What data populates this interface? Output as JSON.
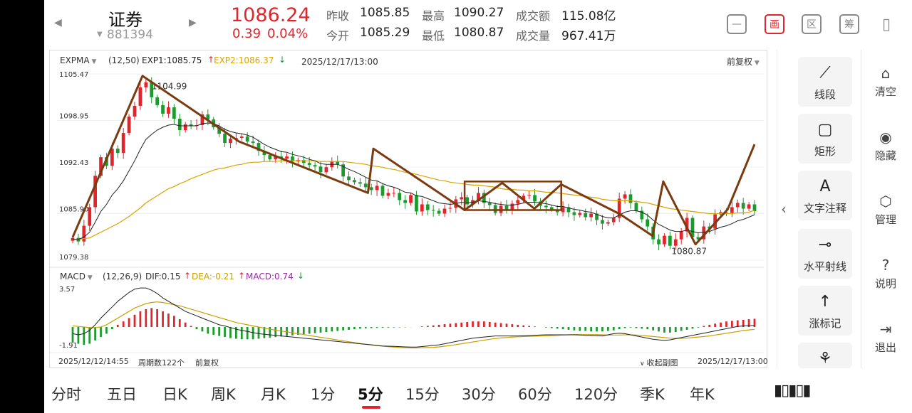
{
  "header": {
    "name": "证券",
    "code": "881394",
    "price": "1086.24",
    "change": "0.39",
    "change_pct": "0.04%",
    "stats": [
      {
        "label": "昨收",
        "value": "1085.85",
        "tone": "flat"
      },
      {
        "label": "最高",
        "value": "1090.27",
        "tone": "up"
      },
      {
        "label": "成交额",
        "value": "115.08亿",
        "tone": "flat"
      },
      {
        "label": "今开",
        "value": "1085.29",
        "tone": "dn"
      },
      {
        "label": "最低",
        "value": "1080.87",
        "tone": "dn"
      },
      {
        "label": "成交量",
        "value": "967.41万",
        "tone": "flat"
      }
    ],
    "toolbar": [
      "minus-box-icon",
      "draw-icon",
      "zone-icon",
      "chip-icon",
      "phone-rotate-icon"
    ],
    "toolbar_glyphs": [
      "—",
      "画",
      "区",
      "筹",
      "▯"
    ]
  },
  "indicator": {
    "name": "EXPMA",
    "params": "(12,50)",
    "exp1": "EXP1:1085.75",
    "exp2": "EXP2:1086.37",
    "time": "2025/12/17/13:00",
    "adjust": "前复权"
  },
  "macd_header": {
    "name": "MACD",
    "params": "(12,26,9)",
    "dif": "DIF:0.15",
    "dea": "DEA:-0.21",
    "macd": "MACD:0.74"
  },
  "footer": {
    "start": "2025/12/12/14:55",
    "periods": "周期数122个",
    "adjust": "前复权",
    "collapse": "收起副图",
    "end": "2025/12/17/13:00"
  },
  "tools": [
    {
      "label": "线段",
      "icon": "segment-icon"
    },
    {
      "label": "矩形",
      "icon": "rectangle-icon"
    },
    {
      "label": "文字注释",
      "icon": "text-annotation-icon"
    },
    {
      "label": "水平射线",
      "icon": "horizontal-ray-icon"
    },
    {
      "label": "涨标记",
      "icon": "rise-mark-icon"
    },
    {
      "label": "",
      "icon": "pattern-icon"
    }
  ],
  "side": [
    {
      "label": "清空",
      "icon": "clear-icon"
    },
    {
      "label": "隐藏",
      "icon": "eye-icon"
    },
    {
      "label": "管理",
      "icon": "manage-icon"
    },
    {
      "label": "说明",
      "icon": "help-icon"
    },
    {
      "label": "退出",
      "icon": "exit-icon"
    }
  ],
  "timeframes": [
    "分时",
    "五日",
    "日K",
    "周K",
    "月K",
    "1分",
    "5分",
    "15分",
    "30分",
    "60分",
    "120分",
    "季K",
    "年K"
  ],
  "active_timeframe": "5分",
  "colors": {
    "up": "#e0252d",
    "down": "#1d9a2f",
    "exp1": "#222222",
    "exp2": "#d9a400",
    "macd_dea": "#c9a000",
    "annotation": "#7a3b10"
  },
  "chart_data": [
    {
      "type": "candlestick",
      "title": "EXPMA",
      "ylim": [
        1079.38,
        1105.47
      ],
      "y_ticks": [
        "1105.47",
        "1098.95",
        "1092.43",
        "1085.90",
        "1079.38"
      ],
      "y_tick_values": [
        1105.47,
        1098.95,
        1092.43,
        1085.9,
        1079.38
      ],
      "x_start": "2025/12/12/14:55",
      "x_end": "2025/12/17/13:00",
      "periods": 122,
      "max_label": "1104.99",
      "min_label": "1080.87",
      "closes": [
        1082.5,
        1082.0,
        1084.2,
        1086.8,
        1091.2,
        1093.8,
        1092.6,
        1095.0,
        1094.4,
        1097.2,
        1099.5,
        1101.0,
        1103.6,
        1104.3,
        1102.2,
        1101.1,
        1099.9,
        1100.8,
        1099.2,
        1097.6,
        1098.4,
        1098.2,
        1098.3,
        1099.8,
        1099.1,
        1098.0,
        1097.1,
        1095.8,
        1096.4,
        1096.5,
        1096.7,
        1096.0,
        1095.8,
        1094.7,
        1094.1,
        1093.5,
        1093.9,
        1093.6,
        1093.9,
        1093.2,
        1093.4,
        1093.0,
        1092.7,
        1092.5,
        1091.7,
        1092.4,
        1093.2,
        1092.8,
        1091.1,
        1090.6,
        1090.3,
        1090.1,
        1089.6,
        1089.2,
        1089.8,
        1088.4,
        1088.8,
        1088.8,
        1087.8,
        1087.4,
        1088.5,
        1086.2,
        1087.2,
        1086.4,
        1086.3,
        1085.9,
        1086.6,
        1086.7,
        1087.9,
        1088.2,
        1087.2,
        1087.8,
        1088.8,
        1087.4,
        1087.1,
        1086.0,
        1087.0,
        1086.5,
        1087.3,
        1087.8,
        1088.4,
        1088.5,
        1087.6,
        1087.0,
        1086.8,
        1086.5,
        1086.1,
        1086.8,
        1086.1,
        1085.7,
        1086.0,
        1085.4,
        1085.9,
        1085.0,
        1084.5,
        1084.7,
        1085.3,
        1088.0,
        1088.6,
        1087.4,
        1086.3,
        1085.1,
        1084.1,
        1082.3,
        1081.6,
        1082.8,
        1081.4,
        1082.3,
        1083.4,
        1085.3,
        1082.6,
        1082.3,
        1084.1,
        1083.8,
        1085.8,
        1086.1,
        1086.0,
        1086.8,
        1087.4,
        1086.6,
        1087.2,
        1086.24
      ],
      "exp1": [
        1082.3,
        1082.3,
        1082.6,
        1083.3,
        1084.7,
        1086.2,
        1087.2,
        1088.5,
        1089.4,
        1090.5,
        1091.9,
        1093.3,
        1094.9,
        1096.3,
        1097.0,
        1097.6,
        1098.0,
        1098.3,
        1098.4,
        1098.2,
        1098.2,
        1098.2,
        1098.2,
        1098.5,
        1098.6,
        1098.5,
        1098.2,
        1097.7,
        1097.4,
        1097.2,
        1097.1,
        1096.9,
        1096.6,
        1096.1,
        1095.6,
        1095.2,
        1094.9,
        1094.6,
        1094.5,
        1094.2,
        1094.0,
        1093.8,
        1093.5,
        1093.3,
        1092.9,
        1092.8,
        1092.8,
        1092.8,
        1092.5,
        1092.1,
        1091.8,
        1091.4,
        1091.0,
        1090.6,
        1090.5,
        1090.1,
        1089.8,
        1089.6,
        1089.3,
        1088.9,
        1088.8,
        1088.4,
        1088.3,
        1088.0,
        1087.7,
        1087.4,
        1087.3,
        1087.2,
        1087.3,
        1087.5,
        1087.4,
        1087.5,
        1087.7,
        1087.6,
        1087.5,
        1087.3,
        1087.2,
        1087.1,
        1087.1,
        1087.2,
        1087.4,
        1087.5,
        1087.5,
        1087.4,
        1087.3,
        1087.1,
        1086.9,
        1086.9,
        1086.7,
        1086.5,
        1086.4,
        1086.2,
        1086.1,
        1085.8,
        1085.5,
        1085.3,
        1085.3,
        1085.7,
        1086.1,
        1086.3,
        1086.3,
        1086.1,
        1085.7,
        1085.0,
        1084.4,
        1084.0,
        1083.6,
        1083.4,
        1083.4,
        1083.6,
        1083.4,
        1083.2,
        1083.3,
        1083.4,
        1083.7,
        1084.0,
        1084.2,
        1084.5,
        1084.9,
        1085.1,
        1085.4,
        1085.75
      ],
      "exp2": [
        1082.3,
        1082.3,
        1082.4,
        1082.5,
        1082.9,
        1083.3,
        1083.7,
        1084.1,
        1084.5,
        1085.0,
        1085.5,
        1086.1,
        1086.7,
        1087.4,
        1087.9,
        1088.4,
        1088.9,
        1089.4,
        1089.7,
        1090.1,
        1090.4,
        1090.8,
        1091.1,
        1091.4,
        1091.7,
        1092.0,
        1092.2,
        1092.3,
        1092.5,
        1092.7,
        1092.8,
        1093.0,
        1093.1,
        1093.1,
        1093.2,
        1093.2,
        1093.2,
        1093.3,
        1093.3,
        1093.3,
        1093.3,
        1093.3,
        1093.3,
        1093.3,
        1093.2,
        1093.2,
        1093.2,
        1093.2,
        1093.2,
        1093.1,
        1093.0,
        1092.9,
        1092.8,
        1092.6,
        1092.5,
        1092.4,
        1092.2,
        1092.1,
        1091.9,
        1091.7,
        1091.6,
        1091.4,
        1091.2,
        1091.0,
        1090.8,
        1090.6,
        1090.5,
        1090.3,
        1090.2,
        1090.1,
        1090.0,
        1089.9,
        1089.9,
        1089.8,
        1089.7,
        1089.6,
        1089.4,
        1089.3,
        1089.3,
        1089.2,
        1089.2,
        1089.1,
        1089.1,
        1089.0,
        1088.9,
        1088.9,
        1088.8,
        1088.7,
        1088.6,
        1088.5,
        1088.4,
        1088.3,
        1088.2,
        1088.1,
        1087.9,
        1087.8,
        1087.7,
        1087.7,
        1087.7,
        1087.7,
        1087.6,
        1087.5,
        1087.4,
        1087.2,
        1087.0,
        1086.8,
        1086.6,
        1086.5,
        1086.4,
        1086.3,
        1086.2,
        1086.1,
        1086.0,
        1085.9,
        1085.9,
        1085.9,
        1085.9,
        1085.9,
        1086.0,
        1086.0,
        1086.1,
        1086.37
      ]
    },
    {
      "type": "bar",
      "title": "MACD",
      "ylim": [
        -1.91,
        3.57
      ],
      "y_ticks": [
        "3.57",
        "-1.91"
      ],
      "y_tick_values": [
        3.57,
        -1.91
      ],
      "macd": [
        -1.4,
        -1.5,
        -1.6,
        -1.5,
        -1.2,
        -0.9,
        -0.6,
        -0.2,
        0.2,
        0.5,
        0.8,
        1.1,
        1.4,
        1.6,
        1.7,
        1.6,
        1.4,
        1.2,
        1.0,
        0.7,
        0.4,
        0.1,
        -0.2,
        -0.4,
        -0.6,
        -0.7,
        -0.8,
        -0.9,
        -1.0,
        -1.05,
        -1.1,
        -1.1,
        -1.1,
        -1.05,
        -1.0,
        -0.95,
        -0.9,
        -0.85,
        -0.8,
        -0.75,
        -0.7,
        -0.65,
        -0.6,
        -0.55,
        -0.5,
        -0.45,
        -0.4,
        -0.35,
        -0.3,
        -0.25,
        -0.2,
        -0.15,
        -0.12,
        -0.1,
        -0.08,
        -0.06,
        -0.05,
        -0.04,
        -0.03,
        -0.02,
        -0.01,
        0.0,
        0.05,
        0.1,
        0.15,
        0.2,
        0.25,
        0.3,
        0.35,
        0.4,
        0.45,
        0.5,
        0.5,
        0.5,
        0.45,
        0.4,
        0.35,
        0.3,
        0.25,
        0.2,
        0.15,
        0.1,
        0.05,
        0.0,
        -0.05,
        -0.1,
        -0.15,
        -0.2,
        -0.25,
        -0.3,
        -0.35,
        -0.35,
        -0.4,
        -0.4,
        -0.4,
        -0.35,
        -0.3,
        -0.2,
        -0.1,
        -0.05,
        -0.1,
        -0.15,
        -0.2,
        -0.3,
        -0.4,
        -0.5,
        -0.5,
        -0.45,
        -0.35,
        -0.25,
        -0.15,
        -0.05,
        0.1,
        0.2,
        0.3,
        0.4,
        0.5,
        0.55,
        0.6,
        0.65,
        0.7,
        0.74
      ],
      "dif": [
        -0.6,
        -0.7,
        -0.6,
        -0.3,
        0.2,
        0.8,
        1.3,
        1.8,
        2.3,
        2.7,
        3.1,
        3.4,
        3.5,
        3.5,
        3.3,
        3.0,
        2.6,
        2.3,
        2.0,
        1.7,
        1.4,
        1.2,
        1.0,
        0.8,
        0.6,
        0.4,
        0.2,
        0.1,
        -0.05,
        -0.2,
        -0.3,
        -0.4,
        -0.5,
        -0.6,
        -0.65,
        -0.7,
        -0.75,
        -0.8,
        -0.85,
        -0.9,
        -0.95,
        -1.0,
        -1.05,
        -1.1,
        -1.15,
        -1.2,
        -1.25,
        -1.3,
        -1.35,
        -1.4,
        -1.45,
        -1.5,
        -1.55,
        -1.6,
        -1.65,
        -1.7,
        -1.72,
        -1.74,
        -1.76,
        -1.78,
        -1.8,
        -1.8,
        -1.75,
        -1.7,
        -1.65,
        -1.6,
        -1.5,
        -1.4,
        -1.3,
        -1.2,
        -1.1,
        -1.0,
        -0.95,
        -0.9,
        -0.85,
        -0.8,
        -0.8,
        -0.8,
        -0.8,
        -0.8,
        -0.78,
        -0.76,
        -0.74,
        -0.72,
        -0.7,
        -0.7,
        -0.7,
        -0.7,
        -0.7,
        -0.7,
        -0.72,
        -0.74,
        -0.76,
        -0.78,
        -0.8,
        -0.7,
        -0.6,
        -0.55,
        -0.6,
        -0.7,
        -0.8,
        -0.9,
        -1.0,
        -1.1,
        -1.15,
        -1.2,
        -1.15,
        -1.05,
        -0.95,
        -0.85,
        -0.75,
        -0.65,
        -0.55,
        -0.45,
        -0.35,
        -0.25,
        -0.15,
        -0.05,
        0.05,
        0.1,
        0.12,
        0.15
      ],
      "dea": [
        0.1,
        0.05,
        0.0,
        -0.05,
        -0.05,
        0.0,
        0.2,
        0.5,
        0.8,
        1.1,
        1.4,
        1.7,
        1.9,
        2.1,
        2.2,
        2.25,
        2.2,
        2.1,
        2.0,
        1.9,
        1.75,
        1.6,
        1.45,
        1.3,
        1.15,
        1.0,
        0.85,
        0.7,
        0.55,
        0.4,
        0.3,
        0.2,
        0.1,
        0.0,
        -0.1,
        -0.2,
        -0.28,
        -0.36,
        -0.44,
        -0.52,
        -0.6,
        -0.68,
        -0.76,
        -0.84,
        -0.92,
        -1.0,
        -1.08,
        -1.16,
        -1.24,
        -1.32,
        -1.4,
        -1.48,
        -1.54,
        -1.6,
        -1.66,
        -1.72,
        -1.76,
        -1.8,
        -1.84,
        -1.86,
        -1.88,
        -1.88,
        -1.86,
        -1.84,
        -1.82,
        -1.78,
        -1.72,
        -1.66,
        -1.58,
        -1.5,
        -1.42,
        -1.34,
        -1.26,
        -1.18,
        -1.1,
        -1.04,
        -0.98,
        -0.94,
        -0.9,
        -0.88,
        -0.86,
        -0.84,
        -0.82,
        -0.8,
        -0.78,
        -0.76,
        -0.74,
        -0.72,
        -0.7,
        -0.68,
        -0.68,
        -0.68,
        -0.68,
        -0.68,
        -0.7,
        -0.72,
        -0.72,
        -0.72,
        -0.7,
        -0.7,
        -0.72,
        -0.75,
        -0.8,
        -0.85,
        -0.9,
        -0.95,
        -1.0,
        -1.02,
        -1.02,
        -1.0,
        -0.95,
        -0.9,
        -0.85,
        -0.8,
        -0.72,
        -0.64,
        -0.56,
        -0.48,
        -0.4,
        -0.32,
        -0.26,
        -0.21
      ]
    }
  ]
}
